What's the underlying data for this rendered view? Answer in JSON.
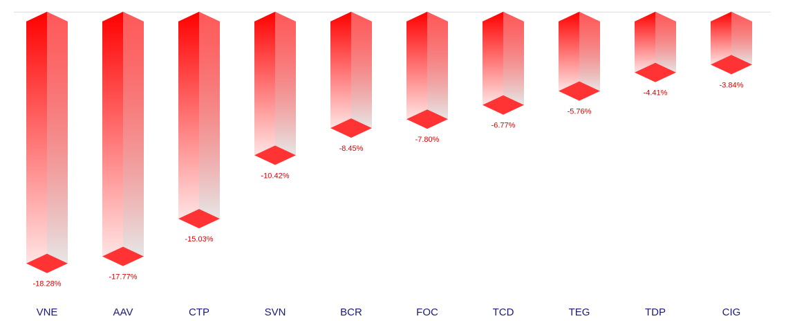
{
  "chart_data": {
    "type": "bar3d",
    "categories": [
      "VNE",
      "AAV",
      "CTP",
      "SVN",
      "BCR",
      "FOC",
      "TCD",
      "TEG",
      "TDP",
      "CIG"
    ],
    "values": [
      -18.28,
      -17.77,
      -15.03,
      -10.42,
      -8.45,
      -7.8,
      -6.77,
      -5.76,
      -4.41,
      -3.84
    ],
    "value_labels": [
      "-18.28%",
      "-17.77%",
      "-15.03%",
      "-10.42%",
      "-8.45%",
      "-7.80%",
      "-6.77%",
      "-5.76%",
      "-4.41%",
      "-3.84%"
    ],
    "color": "#ff0000",
    "ylim": [
      -20,
      0
    ]
  }
}
